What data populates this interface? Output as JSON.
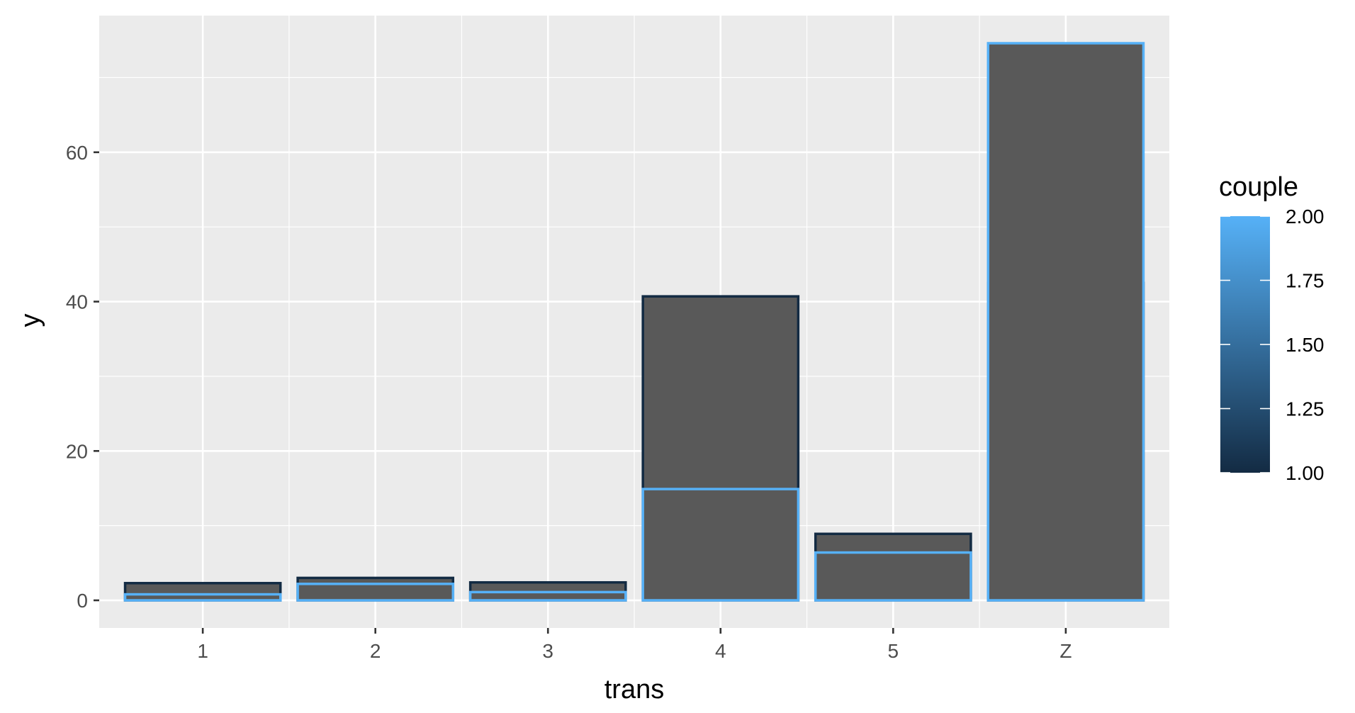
{
  "chart_data": {
    "type": "bar",
    "stacked": false,
    "overlay": true,
    "categories": [
      "1",
      "2",
      "3",
      "4",
      "5",
      "Z"
    ],
    "series": [
      {
        "couple": 1,
        "values": [
          2.3,
          3.0,
          2.4,
          40.7,
          8.9,
          42.5
        ]
      },
      {
        "couple": 2,
        "values": [
          0.8,
          2.2,
          1.1,
          14.9,
          6.4,
          74.6
        ]
      }
    ],
    "xlabel": "trans",
    "ylabel": "y",
    "ylim": [
      -3.7,
      78.3
    ],
    "yticks": [
      0,
      20,
      40,
      60
    ],
    "grid": true,
    "legend": {
      "title": "couple",
      "type": "colorbar",
      "placement": "right",
      "range": [
        1,
        2
      ],
      "labels": [
        "2.00",
        "1.75",
        "1.50",
        "1.25",
        "1.00"
      ],
      "values": [
        2.0,
        1.75,
        1.5,
        1.25,
        1.0
      ],
      "color_low": "#132B43",
      "color_high": "#56B1F7"
    },
    "colors": {
      "panel_background": "#EBEBEB",
      "grid_line": "#FFFFFF",
      "bar_fill": "#595959",
      "outline_low": "#132B43",
      "outline_high": "#56B1F7"
    }
  }
}
